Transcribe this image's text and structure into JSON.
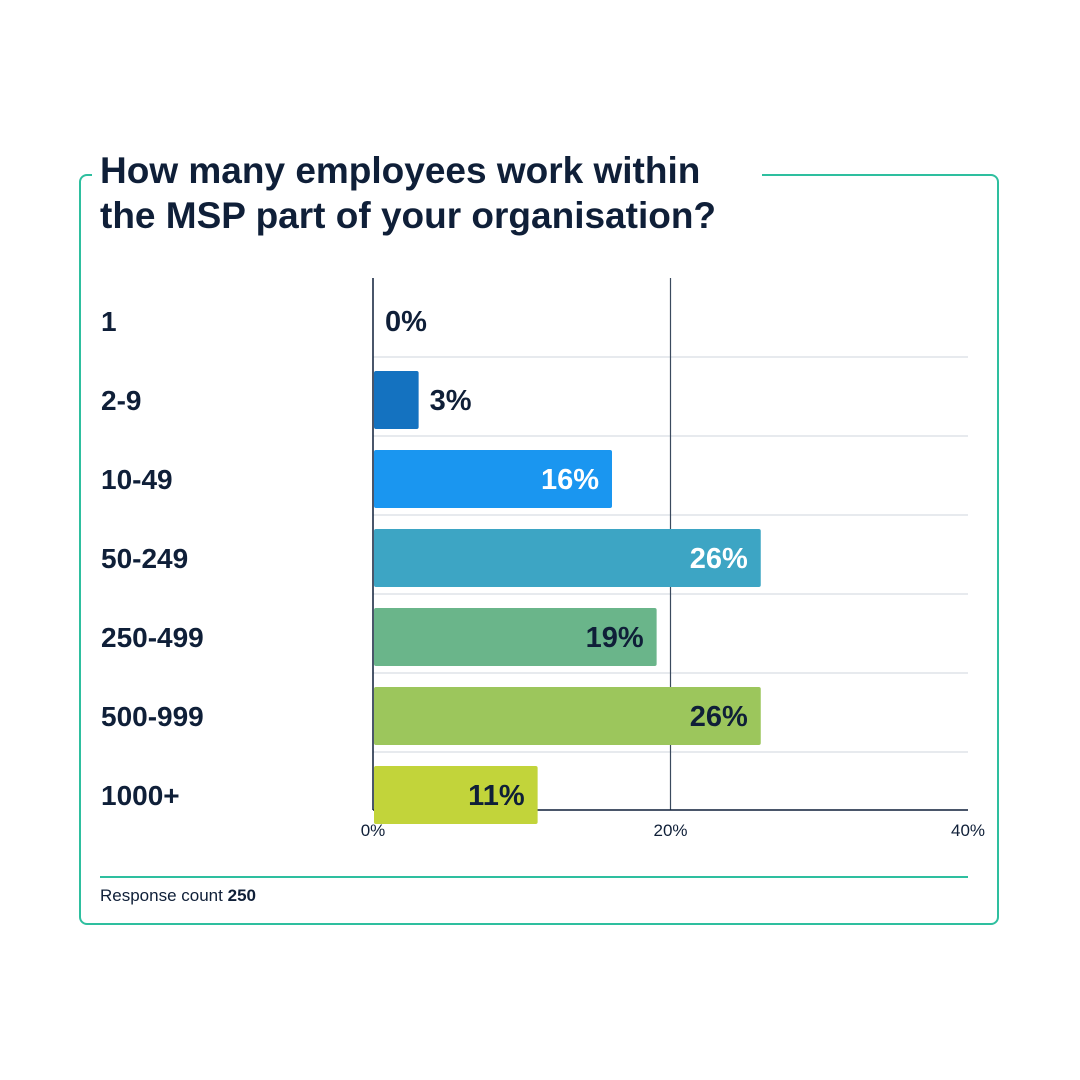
{
  "title": "How many employees work within the MSP part of your organisation?",
  "footer": {
    "label": "Response count",
    "value": "250"
  },
  "colors": {
    "frame": "#2ebf9f",
    "text": "#0f1f38",
    "grid": "#cfd6dd"
  },
  "chart_data": {
    "type": "bar",
    "orientation": "horizontal",
    "categories": [
      "1",
      "2-9",
      "10-49",
      "50-249",
      "250-499",
      "500-999",
      "1000+"
    ],
    "values": [
      0,
      3,
      16,
      26,
      19,
      26,
      11
    ],
    "value_labels": [
      "0%",
      "3%",
      "16%",
      "26%",
      "19%",
      "26%",
      "11%"
    ],
    "bar_colors": [
      "#1f6fbf",
      "#1472c0",
      "#1a96f0",
      "#3da5c4",
      "#6ab58a",
      "#9cc65c",
      "#c2d43a"
    ],
    "label_colors": [
      "#0f1f38",
      "#0f1f38",
      "#ffffff",
      "#ffffff",
      "#0f1f38",
      "#0f1f38",
      "#0f1f38"
    ],
    "xlim": [
      0,
      40
    ],
    "xticks": [
      0,
      20,
      40
    ],
    "xtick_labels": [
      "0%",
      "20%",
      "40%"
    ],
    "grid": true
  }
}
